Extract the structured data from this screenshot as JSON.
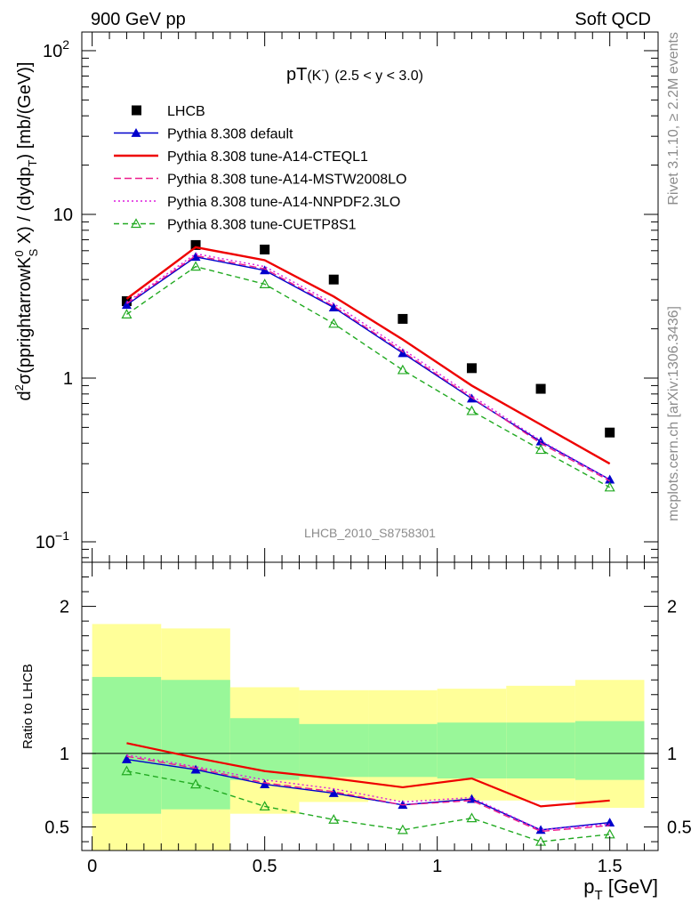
{
  "header": {
    "left": "900 GeV pp",
    "right": "Soft QCD"
  },
  "side_labels": {
    "rivet": "Rivet 3.1.10, ≥ 2.2M events",
    "mcplots": "mcplots.cern.ch [arXiv:1306.3436]"
  },
  "chart_data": [
    {
      "type": "line",
      "title_main": "pT",
      "title_particle": "(K",
      "title_sup": "-",
      "title_close": ")",
      "title_range": "(2.5 < y < 3.0)",
      "analysis_tag": "LHCB_2010_S8758301",
      "ylabel": "d²σ(pprightarrowK⁰S X) / (dydpT) [mb/(GeV)]",
      "ylabel_parts": {
        "a": "d",
        "a_sup": "2",
        "b": "σ(pprightarrowK",
        "b_sup": "0",
        "b_sub": "S",
        "c": " X) / (dydp",
        "c_sub": "T",
        "d": ") [mb/(GeV)]"
      },
      "yscale": "log",
      "ylim": [
        0.075,
        130
      ],
      "xlim": [
        -0.03,
        1.64
      ],
      "yticks": [
        {
          "v": 100,
          "base": "10",
          "exp": "2"
        },
        {
          "v": 10,
          "base": "10",
          "exp": ""
        },
        {
          "v": 1,
          "base": "1",
          "exp": ""
        },
        {
          "v": 0.1,
          "base": "10",
          "exp": "−1"
        }
      ],
      "x": [
        0.1,
        0.3,
        0.5,
        0.7,
        0.9,
        1.1,
        1.3,
        1.5
      ],
      "legend_position": "top-left",
      "series": [
        {
          "name": "LHCB",
          "kind": "data",
          "color": "#000000",
          "values": [
            2.95,
            6.5,
            6.1,
            4.0,
            2.3,
            1.15,
            0.86,
            0.465
          ]
        },
        {
          "name": "Pythia 8.308 default",
          "kind": "line-marker",
          "color": "#0000cc",
          "marker": "triangle-filled",
          "dash": "",
          "values": [
            2.8,
            5.5,
            4.55,
            2.7,
            1.42,
            0.75,
            0.41,
            0.24
          ]
        },
        {
          "name": "Pythia 8.308 tune-A14-CTEQL1",
          "kind": "line",
          "color": "#ee0000",
          "dash": "",
          "values": [
            3.05,
            6.3,
            5.25,
            3.15,
            1.72,
            0.9,
            0.52,
            0.3
          ]
        },
        {
          "name": "Pythia 8.308 tune-A14-MSTW2008LO",
          "kind": "line",
          "color": "#ee1c8c",
          "dash": "8,4",
          "values": [
            2.85,
            5.6,
            4.65,
            2.75,
            1.45,
            0.76,
            0.4,
            0.235
          ]
        },
        {
          "name": "Pythia 8.308 tune-A14-NNPDF2.3LO",
          "kind": "line",
          "color": "#dd1cdd",
          "dash": "2,3",
          "values": [
            2.9,
            5.75,
            4.8,
            2.85,
            1.5,
            0.78,
            0.415,
            0.24
          ]
        },
        {
          "name": "Pythia 8.308 tune-CUETP8S1",
          "kind": "line-marker",
          "color": "#22aa22",
          "marker": "triangle-open",
          "dash": "6,4",
          "values": [
            2.45,
            4.8,
            3.75,
            2.15,
            1.12,
            0.63,
            0.365,
            0.215
          ]
        }
      ]
    },
    {
      "type": "line",
      "ylabel": "Ratio to LHCB",
      "yscale": "linear",
      "ylim": [
        0.34,
        2.3
      ],
      "xlim": [
        -0.03,
        1.64
      ],
      "yticks": [
        {
          "v": 2,
          "label": "2"
        },
        {
          "v": 1,
          "label": "1"
        },
        {
          "v": 0.5,
          "label": "0.5"
        }
      ],
      "xticks": [
        {
          "v": 0,
          "label": "0"
        },
        {
          "v": 0.5,
          "label": "0.5"
        },
        {
          "v": 1,
          "label": "1"
        },
        {
          "v": 1.5,
          "label": "1.5"
        }
      ],
      "xlabel_main": "p",
      "xlabel_sub": "T",
      "xlabel_unit": " [GeV]",
      "bins": [
        {
          "lo": 0.0,
          "hi": 0.2,
          "y1": [
            0.59,
            1.52
          ],
          "y2": [
            0.34,
            1.88
          ]
        },
        {
          "lo": 0.2,
          "hi": 0.4,
          "y1": [
            0.62,
            1.5
          ],
          "y2": [
            0.34,
            1.85
          ]
        },
        {
          "lo": 0.4,
          "hi": 0.6,
          "y1": [
            0.82,
            1.24
          ],
          "y2": [
            0.59,
            1.45
          ]
        },
        {
          "lo": 0.6,
          "hi": 0.8,
          "y1": [
            0.84,
            1.2
          ],
          "y2": [
            0.67,
            1.43
          ]
        },
        {
          "lo": 0.8,
          "hi": 1.0,
          "y1": [
            0.84,
            1.2
          ],
          "y2": [
            0.68,
            1.43
          ]
        },
        {
          "lo": 1.0,
          "hi": 1.2,
          "y1": [
            0.83,
            1.21
          ],
          "y2": [
            0.68,
            1.44
          ]
        },
        {
          "lo": 1.2,
          "hi": 1.4,
          "y1": [
            0.83,
            1.21
          ],
          "y2": [
            0.68,
            1.46
          ]
        },
        {
          "lo": 1.4,
          "hi": 1.6,
          "y1": [
            0.82,
            1.22
          ],
          "y2": [
            0.63,
            1.5
          ]
        }
      ],
      "band_colors": {
        "inner": "#99f799",
        "outer": "#ffff99"
      },
      "x": [
        0.1,
        0.3,
        0.5,
        0.7,
        0.9,
        1.1,
        1.3,
        1.5
      ],
      "series": [
        {
          "name": "Pythia 8.308 default",
          "color": "#0000cc",
          "marker": "triangle-filled",
          "dash": "",
          "values": [
            0.96,
            0.89,
            0.79,
            0.73,
            0.65,
            0.69,
            0.48,
            0.53
          ]
        },
        {
          "name": "Pythia 8.308 tune-A14-CTEQL1",
          "color": "#ee0000",
          "marker": "none",
          "dash": "",
          "values": [
            1.07,
            0.97,
            0.88,
            0.83,
            0.77,
            0.83,
            0.64,
            0.68
          ]
        },
        {
          "name": "Pythia 8.308 tune-A14-MSTW2008LO",
          "color": "#ee1c8c",
          "marker": "none",
          "dash": "8,4",
          "values": [
            0.98,
            0.9,
            0.8,
            0.74,
            0.65,
            0.68,
            0.47,
            0.51
          ]
        },
        {
          "name": "Pythia 8.308 tune-A14-NNPDF2.3LO",
          "color": "#dd1cdd",
          "marker": "none",
          "dash": "2,3",
          "values": [
            0.99,
            0.91,
            0.82,
            0.76,
            0.67,
            0.7,
            0.48,
            0.52
          ]
        },
        {
          "name": "Pythia 8.308 tune-CUETP8S1",
          "color": "#22aa22",
          "marker": "triangle-open",
          "dash": "6,4",
          "values": [
            0.88,
            0.79,
            0.64,
            0.55,
            0.48,
            0.56,
            0.4,
            0.45
          ]
        }
      ]
    }
  ]
}
